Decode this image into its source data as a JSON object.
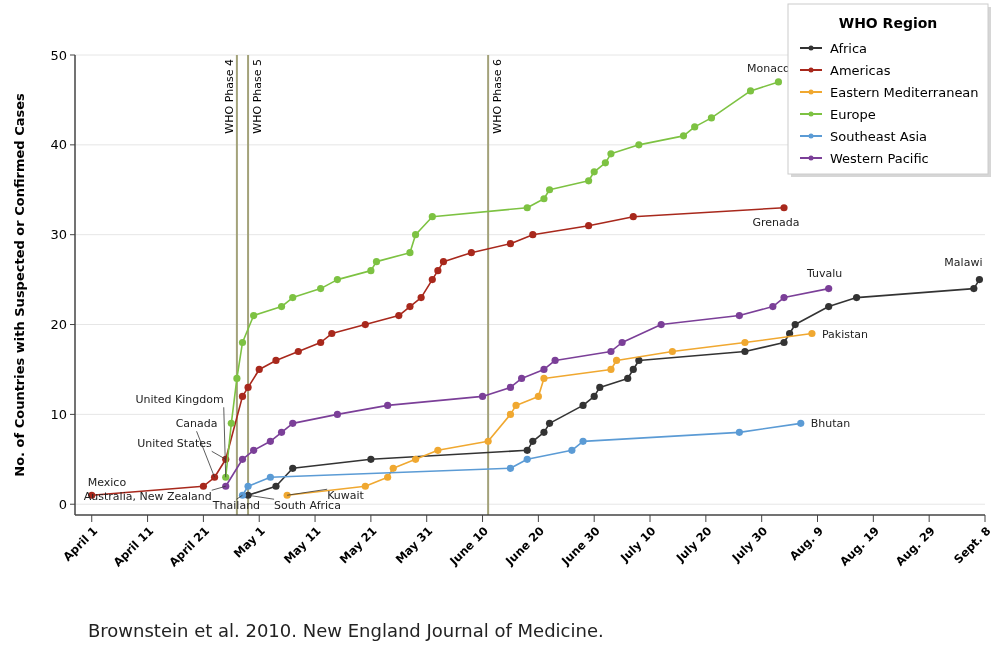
{
  "chart_data": {
    "type": "line",
    "ylabel": "No. of Countries with Suspected or Confirmed Cases",
    "legend_title": "WHO Region",
    "legend": "top right",
    "grid": "y",
    "marker": "circle",
    "line_style": "solid",
    "xlim": [
      "--03-29",
      "--09-08"
    ],
    "xticks": [
      {
        "value": "--04-01",
        "label": "April 1"
      },
      {
        "value": "--04-11",
        "label": "April 11"
      },
      {
        "value": "--04-21",
        "label": "April 21"
      },
      {
        "value": "--05-01",
        "label": "May 1"
      },
      {
        "value": "--05-11",
        "label": "May 11"
      },
      {
        "value": "--05-21",
        "label": "May 21"
      },
      {
        "value": "--05-31",
        "label": "May 31"
      },
      {
        "value": "--06-10",
        "label": "June 10"
      },
      {
        "value": "--06-20",
        "label": "June 20"
      },
      {
        "value": "--06-30",
        "label": "June 30"
      },
      {
        "value": "--07-10",
        "label": "July 10"
      },
      {
        "value": "--07-20",
        "label": "July 20"
      },
      {
        "value": "--07-30",
        "label": "July 30"
      },
      {
        "value": "--08-09",
        "label": "Aug. 9"
      },
      {
        "value": "--08-19",
        "label": "Aug. 19"
      },
      {
        "value": "--08-29",
        "label": "Aug. 29"
      },
      {
        "value": "--09-08",
        "label": "Sept. 8"
      }
    ],
    "ylim": [
      -1.2,
      50
    ],
    "yticks": [
      0,
      10,
      20,
      30,
      40,
      50
    ],
    "series": [
      {
        "name": "Africa",
        "color": "#333333",
        "x": [
          "--04-29",
          "--05-04",
          "--05-07",
          "--05-21",
          "--06-18",
          "--06-19",
          "--06-21",
          "--06-22",
          "--06-28",
          "--06-30",
          "--07-01",
          "--07-06",
          "--07-07",
          "--07-08",
          "--07-27",
          "--08-03",
          "--08-04",
          "--08-05",
          "--08-11",
          "--08-16",
          "--09-06",
          "--09-07"
        ],
        "values": [
          1,
          2,
          4,
          5,
          6,
          7,
          8,
          9,
          11,
          12,
          13,
          14,
          15,
          16,
          17,
          18,
          19,
          20,
          22,
          23,
          24,
          25
        ]
      },
      {
        "name": "Americas",
        "color": "#a8281c",
        "x": [
          "--04-01",
          "--04-21",
          "--04-23",
          "--04-25",
          "--04-28",
          "--04-29",
          "--05-01",
          "--05-04",
          "--05-08",
          "--05-12",
          "--05-14",
          "--05-20",
          "--05-26",
          "--05-28",
          "--05-30",
          "--06-01",
          "--06-02",
          "--06-03",
          "--06-08",
          "--06-15",
          "--06-19",
          "--06-29",
          "--07-07",
          "--08-03"
        ],
        "values": [
          1,
          2,
          3,
          5,
          12,
          13,
          15,
          16,
          17,
          18,
          19,
          20,
          21,
          22,
          23,
          25,
          26,
          27,
          28,
          29,
          30,
          31,
          32,
          33
        ]
      },
      {
        "name": "Eastern Mediterranean",
        "color": "#f0a830",
        "x": [
          "--05-06",
          "--05-20",
          "--05-24",
          "--05-25",
          "--05-29",
          "--06-02",
          "--06-11",
          "--06-15",
          "--06-16",
          "--06-20",
          "--06-21",
          "--07-03",
          "--07-04",
          "--07-14",
          "--07-27",
          "--08-08"
        ],
        "values": [
          1,
          2,
          3,
          4,
          5,
          6,
          7,
          10,
          11,
          12,
          14,
          15,
          16,
          17,
          18,
          19
        ]
      },
      {
        "name": "Europe",
        "color": "#7dc242",
        "x": [
          "--04-25",
          "--04-26",
          "--04-27",
          "--04-28",
          "--04-30",
          "--05-05",
          "--05-07",
          "--05-12",
          "--05-15",
          "--05-21",
          "--05-22",
          "--05-28",
          "--05-29",
          "--06-01",
          "--06-18",
          "--06-21",
          "--06-22",
          "--06-29",
          "--06-30",
          "--07-02",
          "--07-03",
          "--07-08",
          "--07-16",
          "--07-18",
          "--07-21",
          "--07-28",
          "--08-02"
        ],
        "values": [
          3,
          9,
          14,
          18,
          21,
          22,
          23,
          24,
          25,
          26,
          27,
          28,
          30,
          32,
          33,
          34,
          35,
          36,
          37,
          38,
          39,
          40,
          41,
          42,
          43,
          46,
          47
        ]
      },
      {
        "name": "Southeast Asia",
        "color": "#5b9bd5",
        "x": [
          "--04-28",
          "--04-29",
          "--05-03",
          "--06-15",
          "--06-18",
          "--06-26",
          "--06-28",
          "--07-26",
          "--08-06"
        ],
        "values": [
          1,
          2,
          3,
          4,
          5,
          6,
          7,
          8,
          9
        ]
      },
      {
        "name": "Western Pacific",
        "color": "#7b3f98",
        "x": [
          "--04-25",
          "--04-28",
          "--04-30",
          "--05-03",
          "--05-05",
          "--05-07",
          "--05-15",
          "--05-24",
          "--06-10",
          "--06-15",
          "--06-17",
          "--06-21",
          "--06-23",
          "--07-03",
          "--07-05",
          "--07-12",
          "--07-26",
          "--08-01",
          "--08-03",
          "--08-11"
        ],
        "values": [
          2,
          5,
          6,
          7,
          8,
          9,
          10,
          11,
          12,
          13,
          14,
          15,
          16,
          17,
          18,
          20,
          21,
          22,
          23,
          24
        ]
      }
    ],
    "ref_lines": [
      {
        "axis": "x",
        "value": "--04-27",
        "label": "WHO Phase 4",
        "color": "#a3a27a"
      },
      {
        "axis": "x",
        "value": "--04-29",
        "label": "WHO Phase 5",
        "color": "#a3a27a"
      },
      {
        "axis": "x",
        "value": "--06-11",
        "label": "WHO Phase 6",
        "color": "#a3a27a"
      }
    ],
    "annotations": [
      {
        "text": "Mexico",
        "x": "--04-01",
        "y": 1
      },
      {
        "text": "Canada",
        "x": "--04-23",
        "y": 3
      },
      {
        "text": "United States",
        "x": "--04-25",
        "y": 5
      },
      {
        "text": "United Kingdom",
        "x": "--04-25",
        "y": 3
      },
      {
        "text": "Australia, New Zealand",
        "x": "--04-25",
        "y": 2
      },
      {
        "text": "Thailand",
        "x": "--04-28",
        "y": 1
      },
      {
        "text": "South Africa",
        "x": "--04-29",
        "y": 1
      },
      {
        "text": "Kuwait",
        "x": "--05-06",
        "y": 1
      },
      {
        "text": "Monaco",
        "x": "--08-02",
        "y": 47
      },
      {
        "text": "Grenada",
        "x": "--08-03",
        "y": 33
      },
      {
        "text": "Tuvalu",
        "x": "--08-11",
        "y": 24
      },
      {
        "text": "Malawi",
        "x": "--09-07",
        "y": 25
      },
      {
        "text": "Pakistan",
        "x": "--08-08",
        "y": 19
      },
      {
        "text": "Bhutan",
        "x": "--08-06",
        "y": 9
      },
      "Brownstein et al. 2010. New England Journal of Medicine."
    ]
  }
}
